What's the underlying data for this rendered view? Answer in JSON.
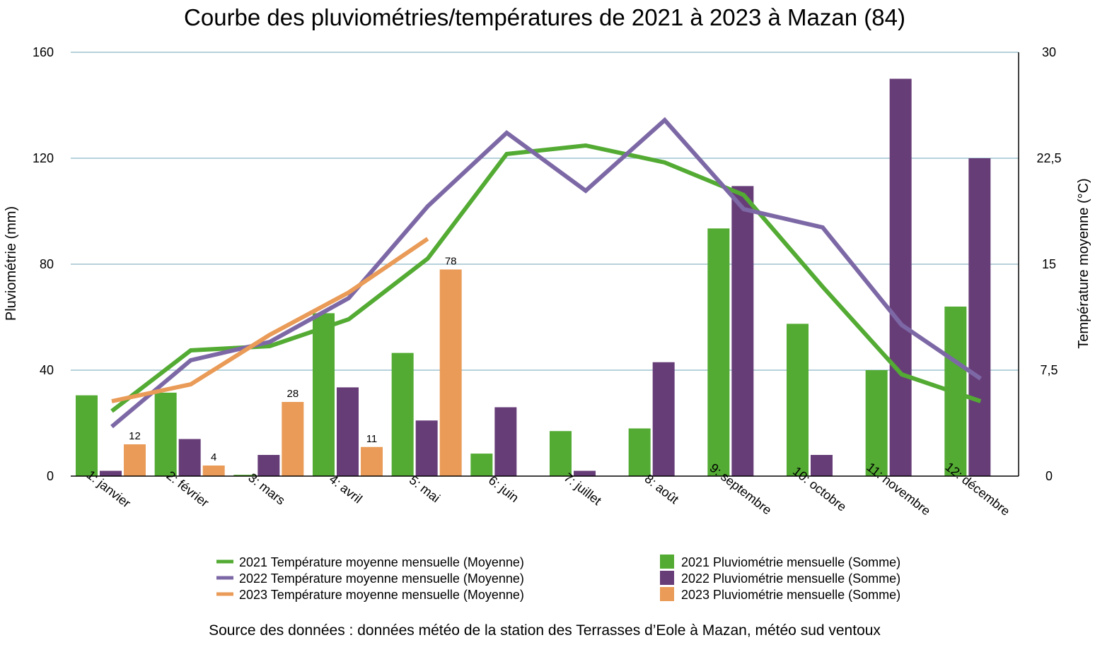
{
  "chart_data": {
    "type": "bar",
    "title": "Courbe des pluviométries/températures de 2021 à 2023 à Mazan (84)",
    "source": "Source des données : données météo de la station des Terrasses d’Eole à Mazan, météo sud ventoux",
    "ylabel_left": "Pluviométrie (mm)",
    "ylabel_right": "Température moyenne (°C)",
    "ylim_left": [
      0,
      160
    ],
    "ylim_right": [
      0,
      30
    ],
    "yticks_left": [
      "0",
      "40",
      "80",
      "120",
      "160"
    ],
    "yticks_right": [
      "0",
      "7,5",
      "15",
      "22,5",
      "30"
    ],
    "grid": true,
    "legend_position": "bottom",
    "categories": [
      "1: janvier",
      "2: février",
      "3: mars",
      "4: avril",
      "5: mai",
      "6: juin",
      "7: juillet",
      "8: août",
      "9: septembre",
      "10: octobre",
      "11: novembre",
      "12: décembre"
    ],
    "bar_series": [
      {
        "name": "2021 Pluviométrie mensuelle (Somme)",
        "color": "#53ab33",
        "values": [
          30.5,
          31.5,
          0.5,
          61.5,
          46.5,
          8.5,
          17,
          18,
          93.5,
          57.5,
          40,
          64
        ]
      },
      {
        "name": "2022 Pluviométrie mensuelle (Somme)",
        "color": "#673d78",
        "values": [
          2,
          14,
          8,
          33.5,
          21,
          26,
          2,
          43,
          109.5,
          8,
          150,
          120
        ]
      },
      {
        "name": "2023 Pluviométrie mensuelle (Somme)",
        "color": "#e99b57",
        "values": [
          12,
          4,
          28,
          11,
          78,
          null,
          null,
          null,
          null,
          null,
          null,
          null
        ],
        "labels": [
          "12",
          "4",
          "28",
          "11",
          "78",
          "",
          "",
          "",
          "",
          "",
          "",
          ""
        ]
      }
    ],
    "line_series": [
      {
        "name": "2021 Température moyenne mensuelle (Moyenne)",
        "color": "#53ab33",
        "values": [
          4.6,
          8.9,
          9.2,
          11.1,
          15.4,
          22.8,
          23.4,
          22.2,
          19.9,
          13.4,
          7.2,
          5.3
        ]
      },
      {
        "name": "2022 Température moyenne mensuelle (Moyenne)",
        "color": "#7d68a6",
        "values": [
          3.5,
          8.2,
          9.5,
          12.6,
          19.1,
          24.3,
          20.2,
          25.2,
          18.9,
          17.6,
          10.7,
          6.9
        ]
      },
      {
        "name": "2023 Température moyenne mensuelle (Moyenne)",
        "color": "#e99b57",
        "values": [
          5.3,
          6.5,
          10.0,
          13.0,
          16.8,
          null,
          null,
          null,
          null,
          null,
          null,
          null
        ]
      }
    ]
  }
}
